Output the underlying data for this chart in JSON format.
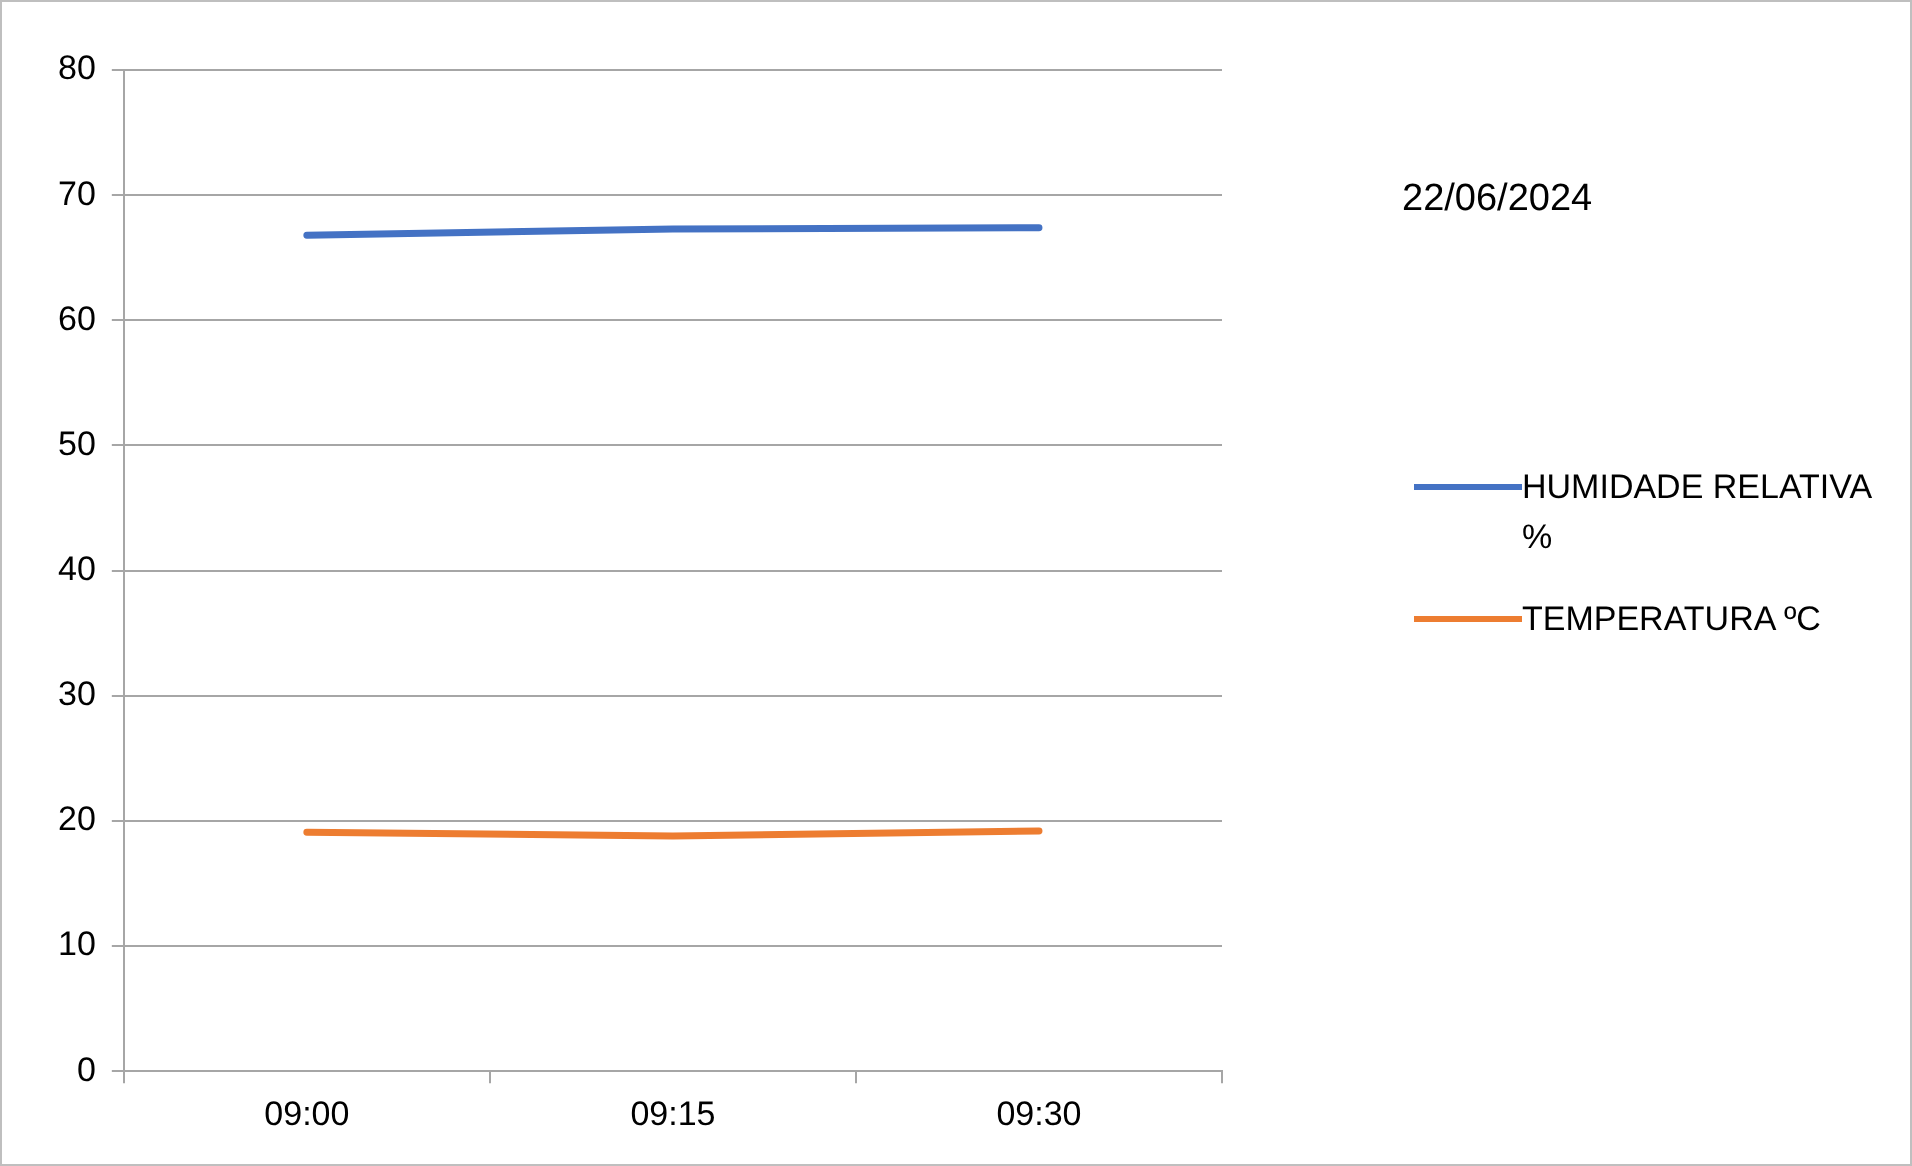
{
  "chart_data": {
    "type": "line",
    "categories": [
      "09:00",
      "09:15",
      "09:30"
    ],
    "series": [
      {
        "name": "HUMIDADE RELATIVA %",
        "color": "#4472c4",
        "values": [
          66.8,
          67.3,
          67.4
        ]
      },
      {
        "name": "TEMPERATURA ºC",
        "color": "#ed7d31",
        "values": [
          19.1,
          18.8,
          19.2
        ]
      }
    ],
    "ylim": [
      0,
      80
    ],
    "yticks": [
      0,
      10,
      20,
      30,
      40,
      50,
      60,
      70,
      80
    ],
    "grid": "y",
    "legend": "right",
    "marker": "none",
    "annotations": [
      "22/06/2024"
    ]
  }
}
